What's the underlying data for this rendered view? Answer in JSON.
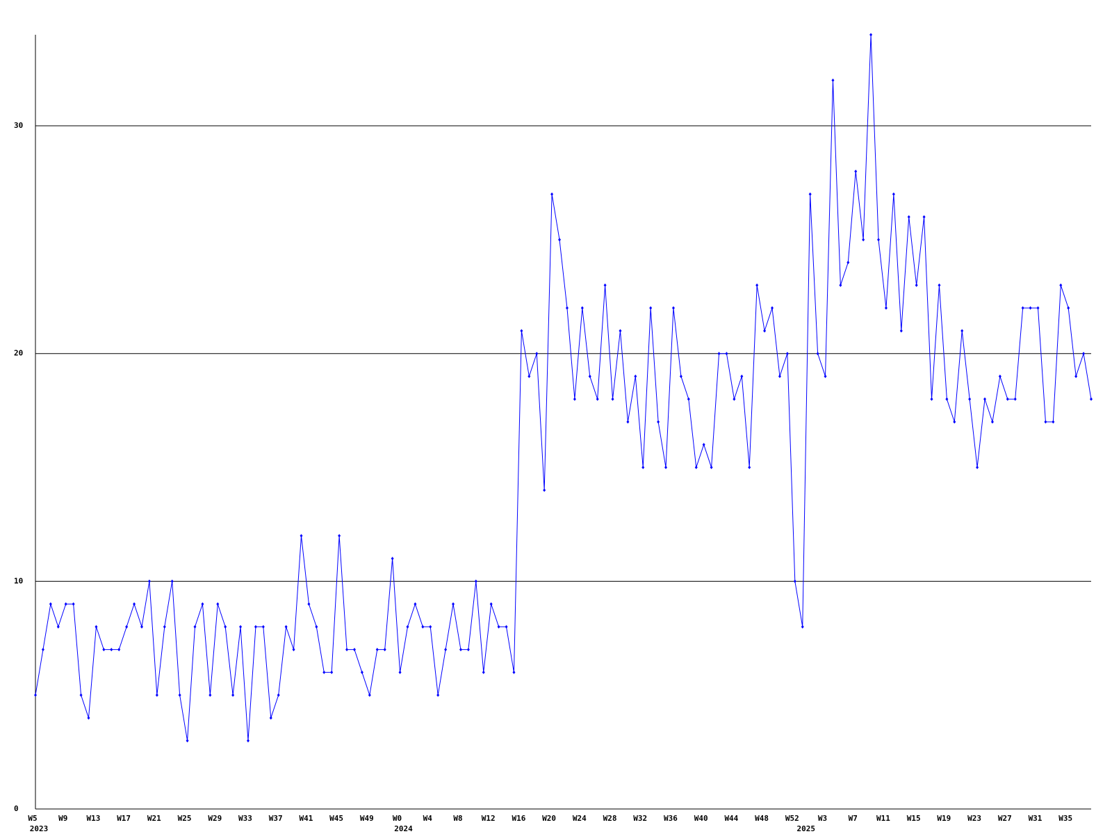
{
  "chart_data": {
    "type": "line",
    "categories": [
      "W5",
      null,
      null,
      null,
      "W9",
      null,
      null,
      null,
      "W13",
      null,
      null,
      null,
      "W17",
      null,
      null,
      null,
      "W21",
      null,
      null,
      null,
      "W25",
      null,
      null,
      null,
      "W29",
      null,
      null,
      null,
      "W33",
      null,
      null,
      null,
      "W37",
      null,
      null,
      null,
      "W41",
      null,
      null,
      null,
      "W45",
      null,
      null,
      null,
      "W49",
      null,
      null,
      null,
      "W0",
      null,
      null,
      null,
      "W4",
      null,
      null,
      null,
      "W8",
      null,
      null,
      null,
      "W12",
      null,
      null,
      null,
      "W16",
      null,
      null,
      null,
      "W20",
      null,
      null,
      null,
      "W24",
      null,
      null,
      null,
      "W28",
      null,
      null,
      null,
      "W32",
      null,
      null,
      null,
      "W36",
      null,
      null,
      null,
      "W40",
      null,
      null,
      null,
      "W44",
      null,
      null,
      null,
      "W48",
      null,
      null,
      null,
      "W52",
      null,
      null,
      null,
      "W3",
      null,
      null,
      null,
      "W7",
      null,
      null,
      null,
      "W11",
      null,
      null,
      null,
      "W15",
      null,
      null,
      null,
      "W19",
      null,
      null,
      null,
      "W23",
      null,
      null,
      null,
      "W27",
      null,
      null,
      null,
      "W31",
      null,
      null,
      null,
      "W35",
      null,
      null,
      null
    ],
    "year_labels": [
      "2023",
      null,
      null,
      null,
      null,
      null,
      null,
      null,
      null,
      null,
      null,
      null,
      null,
      null,
      null,
      null,
      null,
      null,
      null,
      null,
      null,
      null,
      null,
      null,
      null,
      null,
      null,
      null,
      null,
      null,
      null,
      null,
      null,
      null,
      null,
      null,
      null,
      null,
      null,
      null,
      null,
      null,
      null,
      null,
      null,
      null,
      null,
      null,
      "2024",
      null,
      null,
      null,
      null,
      null,
      null,
      null,
      null,
      null,
      null,
      null,
      null,
      null,
      null,
      null,
      null,
      null,
      null,
      null,
      null,
      null,
      null,
      null,
      null,
      null,
      null,
      null,
      null,
      null,
      null,
      null,
      null,
      null,
      null,
      null,
      null,
      null,
      null,
      null,
      null,
      null,
      null,
      null,
      null,
      null,
      null,
      null,
      null,
      null,
      null,
      null,
      null,
      "2025",
      null,
      null,
      null,
      null,
      null,
      null,
      null,
      null,
      null,
      null,
      null,
      null,
      null,
      null,
      null,
      null,
      null,
      null,
      null,
      null,
      null,
      null,
      null,
      null,
      null,
      null,
      null,
      null,
      null,
      null,
      null,
      null,
      null,
      null,
      null,
      null,
      null,
      null
    ],
    "series": [
      {
        "color": "#0000ff",
        "values": [
          5,
          7,
          9,
          8,
          9,
          9,
          5,
          4,
          8,
          7,
          7,
          7,
          8,
          9,
          8,
          10,
          5,
          8,
          10,
          5,
          3,
          8,
          9,
          5,
          9,
          8,
          5,
          8,
          3,
          8,
          8,
          4,
          5,
          8,
          7,
          12,
          9,
          8,
          6,
          6,
          12,
          7,
          7,
          6,
          5,
          7,
          7,
          11,
          6,
          8,
          9,
          8,
          8,
          5,
          7,
          9,
          7,
          7,
          10,
          6,
          9,
          8,
          8,
          6,
          21,
          19,
          20,
          14,
          27,
          25,
          22,
          18,
          22,
          19,
          18,
          23,
          18,
          21,
          17,
          19,
          15,
          22,
          17,
          15,
          22,
          19,
          18,
          15,
          16,
          15,
          20,
          20,
          18,
          19,
          15,
          23,
          21,
          22,
          19,
          20,
          10,
          8,
          27,
          20,
          19,
          32,
          23,
          24,
          28,
          25,
          34,
          25,
          22,
          27,
          21,
          26,
          23,
          26,
          18,
          23,
          18,
          17,
          21,
          18,
          15,
          18,
          17,
          19,
          18,
          18,
          22,
          22,
          22,
          17,
          17,
          23,
          22,
          19,
          20,
          18
        ]
      }
    ],
    "ylim": [
      0,
      34
    ],
    "yticks": [
      0,
      10,
      20,
      30
    ],
    "grid": true
  }
}
